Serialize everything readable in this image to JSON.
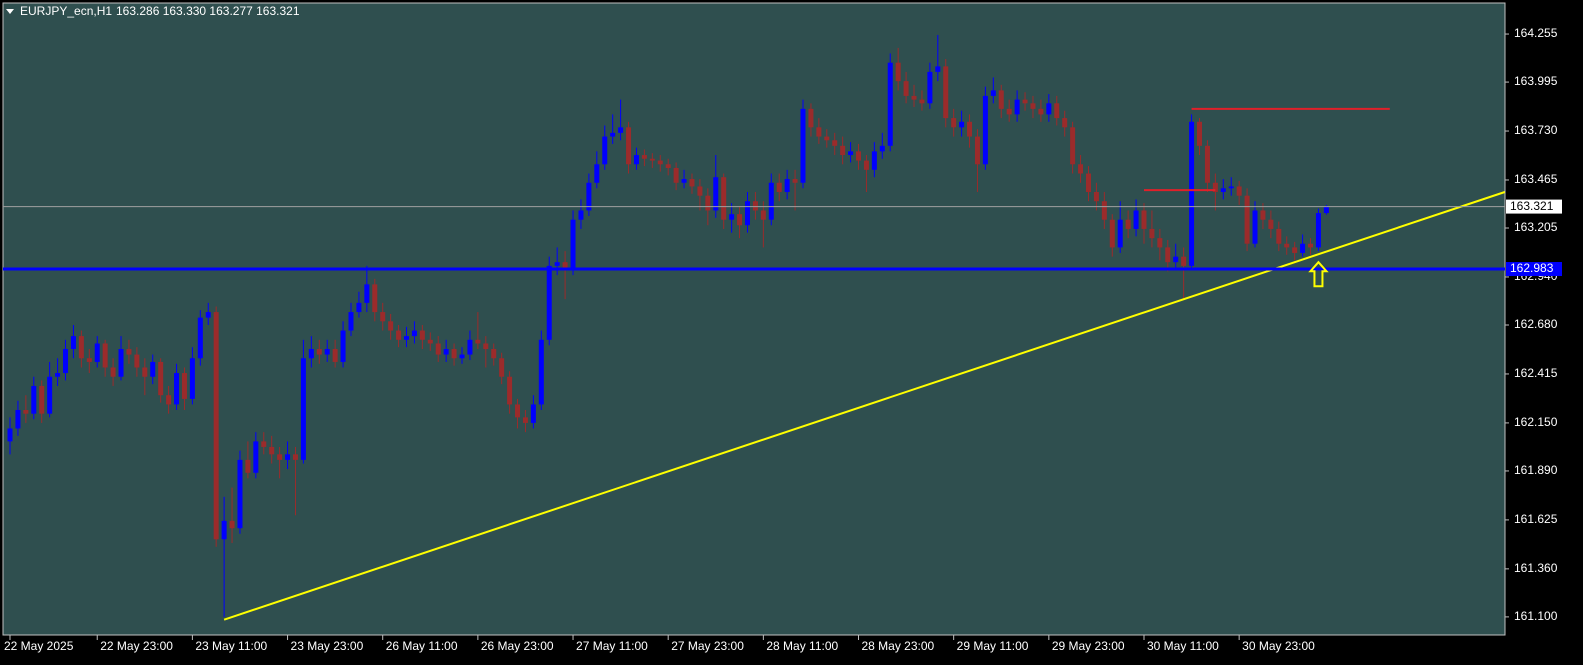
{
  "chart_data": {
    "type": "candlestick",
    "title": "EURJPY_ecn,H1",
    "quote": "163.286 163.330 163.277 163.321",
    "background": "#2f4f4f",
    "up_color": "#0000ff",
    "down_color": "#9b2b2b",
    "grid": false,
    "ylim": [
      161.002,
      164.423
    ],
    "yticks": [
      164.255,
      163.995,
      {
        "value": 163.73,
        "label": "163.730"
      },
      163.465,
      163.205,
      {
        "value": 162.94,
        "label": "162.940"
      },
      {
        "value": 162.68,
        "label": "162.680"
      },
      162.415,
      {
        "value": 162.15,
        "label": "162.150"
      },
      {
        "value": 161.89,
        "label": "161.890"
      },
      161.625,
      {
        "value": 161.36,
        "label": "161.360"
      },
      {
        "value": 161.1,
        "label": "161.100"
      }
    ],
    "categories": [
      "22 May 2025",
      null,
      null,
      null,
      null,
      null,
      null,
      null,
      null,
      null,
      null,
      "22 May 23:00",
      null,
      null,
      null,
      null,
      null,
      null,
      null,
      null,
      null,
      null,
      null,
      "23 May 11:00",
      null,
      null,
      null,
      null,
      null,
      null,
      null,
      null,
      null,
      null,
      null,
      "23 May 23:00",
      null,
      null,
      null,
      null,
      null,
      null,
      null,
      null,
      null,
      null,
      null,
      "26 May 11:00",
      null,
      null,
      null,
      null,
      null,
      null,
      null,
      null,
      null,
      null,
      null,
      "26 May 23:00",
      null,
      null,
      null,
      null,
      null,
      null,
      null,
      null,
      null,
      null,
      null,
      "27 May 11:00",
      null,
      null,
      null,
      null,
      null,
      null,
      null,
      null,
      null,
      null,
      null,
      "27 May 23:00",
      null,
      null,
      null,
      null,
      null,
      null,
      null,
      null,
      null,
      null,
      null,
      "28 May 11:00",
      null,
      null,
      null,
      null,
      null,
      null,
      null,
      null,
      null,
      null,
      null,
      "28 May 23:00",
      null,
      null,
      null,
      null,
      null,
      null,
      null,
      null,
      null,
      null,
      null,
      "29 May 11:00",
      null,
      null,
      null,
      null,
      null,
      null,
      null,
      null,
      null,
      null,
      null,
      "29 May 23:00",
      null,
      null,
      null,
      null,
      null,
      null,
      null,
      null,
      null,
      null,
      null,
      "30 May 11:00",
      null,
      null,
      null,
      null,
      null,
      null,
      null,
      null,
      null,
      null,
      null,
      "30 May 23:00",
      null,
      null,
      null,
      null,
      null,
      null,
      null,
      null,
      null,
      null,
      null
    ],
    "open": [
      162.05,
      162.12,
      162.22,
      162.2,
      162.35,
      162.2,
      162.4,
      162.42,
      162.55,
      162.62,
      162.5,
      162.48,
      162.58,
      162.45,
      162.4,
      162.55,
      162.52,
      162.45,
      162.4,
      162.48,
      162.3,
      162.25,
      162.42,
      162.28,
      162.5,
      162.72,
      162.75,
      161.52,
      161.62,
      161.58,
      161.95,
      161.88,
      162.05,
      162.02,
      161.98,
      161.95,
      161.98,
      161.95,
      162.5,
      162.55,
      162.52,
      162.55,
      162.48,
      162.65,
      162.75,
      162.8,
      162.9,
      162.75,
      162.7,
      162.65,
      162.6,
      162.62,
      162.65,
      162.6,
      162.58,
      162.52,
      162.55,
      162.5,
      162.52,
      162.6,
      162.58,
      162.55,
      162.5,
      162.4,
      162.25,
      162.18,
      162.15,
      162.25,
      162.6,
      163.0,
      163.02,
      162.98,
      163.25,
      163.3,
      163.45,
      163.55,
      163.7,
      163.72,
      163.75,
      163.55,
      163.6,
      163.58,
      163.57,
      163.55,
      163.53,
      163.45,
      163.47,
      163.43,
      163.38,
      163.3,
      163.48,
      163.25,
      163.28,
      163.22,
      163.35,
      163.3,
      163.25,
      163.45,
      163.4,
      163.47,
      163.45,
      163.85,
      163.75,
      163.7,
      163.68,
      163.65,
      163.6,
      163.62,
      163.57,
      163.52,
      163.62,
      163.65,
      164.1,
      164.0,
      163.92,
      163.9,
      163.88,
      164.05,
      164.08,
      163.8,
      163.75,
      163.78,
      163.7,
      163.55,
      163.92,
      163.95,
      163.85,
      163.82,
      163.9,
      163.88,
      163.85,
      163.82,
      163.88,
      163.8,
      163.75,
      163.55,
      163.5,
      163.4,
      163.35,
      163.25,
      163.1,
      163.25,
      163.2,
      163.3,
      163.2,
      163.15,
      163.1,
      163.02,
      163.05,
      163.0,
      163.78,
      163.65,
      163.45,
      163.4,
      163.42,
      163.43,
      163.38,
      163.12,
      163.3,
      163.25,
      163.2,
      163.12,
      163.1,
      163.07,
      163.12,
      163.1,
      163.286
    ],
    "high": [
      162.18,
      162.27,
      162.3,
      162.4,
      162.38,
      162.48,
      162.5,
      162.6,
      162.68,
      162.65,
      162.55,
      162.62,
      162.6,
      162.5,
      162.62,
      162.6,
      162.56,
      162.5,
      162.52,
      162.5,
      162.35,
      162.47,
      162.45,
      162.56,
      162.76,
      162.8,
      162.78,
      161.75,
      161.8,
      162.0,
      162.05,
      162.1,
      162.1,
      162.08,
      162.02,
      162.05,
      162.02,
      162.6,
      162.62,
      162.6,
      162.6,
      162.6,
      162.7,
      162.8,
      162.86,
      163.0,
      162.93,
      162.8,
      162.74,
      162.68,
      162.67,
      162.7,
      162.68,
      162.64,
      162.62,
      162.6,
      162.58,
      162.56,
      162.65,
      162.75,
      162.62,
      162.58,
      162.53,
      162.43,
      162.28,
      162.22,
      162.3,
      162.65,
      163.05,
      163.1,
      163.08,
      163.3,
      163.36,
      163.5,
      163.62,
      163.76,
      163.82,
      163.9,
      163.78,
      163.64,
      163.63,
      163.61,
      163.6,
      163.58,
      163.56,
      163.52,
      163.5,
      163.47,
      163.42,
      163.6,
      163.5,
      163.34,
      163.32,
      163.4,
      163.4,
      163.35,
      163.5,
      163.5,
      163.52,
      163.52,
      163.9,
      163.88,
      163.8,
      163.74,
      163.72,
      163.7,
      163.67,
      163.66,
      163.6,
      163.67,
      163.72,
      164.15,
      164.18,
      164.05,
      163.98,
      163.95,
      164.1,
      164.25,
      164.12,
      163.85,
      163.84,
      163.82,
      163.74,
      163.97,
      164.02,
      163.98,
      163.9,
      163.95,
      163.94,
      163.92,
      163.9,
      163.93,
      163.92,
      163.84,
      163.78,
      163.6,
      163.54,
      163.45,
      163.4,
      163.28,
      163.35,
      163.3,
      163.36,
      163.34,
      163.3,
      163.2,
      163.14,
      163.12,
      163.1,
      163.82,
      163.8,
      163.68,
      163.5,
      163.47,
      163.48,
      163.46,
      163.42,
      163.35,
      163.34,
      163.3,
      163.24,
      163.16,
      163.13,
      163.17,
      163.15,
      163.31,
      163.33
    ],
    "low": [
      161.98,
      162.08,
      162.15,
      162.17,
      162.15,
      162.18,
      162.35,
      162.38,
      162.5,
      162.45,
      162.42,
      162.45,
      162.4,
      162.35,
      162.38,
      162.47,
      162.4,
      162.3,
      162.36,
      162.26,
      162.2,
      162.22,
      162.22,
      162.25,
      162.46,
      162.68,
      161.48,
      161.1,
      161.5,
      161.55,
      161.85,
      161.85,
      161.98,
      161.93,
      161.85,
      161.9,
      161.65,
      161.93,
      162.45,
      162.47,
      162.48,
      162.45,
      162.45,
      162.62,
      162.72,
      162.75,
      162.7,
      162.65,
      162.6,
      162.56,
      162.56,
      162.58,
      162.55,
      162.54,
      162.48,
      162.48,
      162.46,
      162.47,
      162.49,
      162.55,
      162.45,
      162.46,
      162.36,
      162.2,
      162.12,
      162.1,
      162.12,
      162.22,
      162.57,
      162.95,
      162.82,
      162.95,
      163.2,
      163.27,
      163.42,
      163.52,
      163.66,
      163.68,
      163.5,
      163.52,
      163.54,
      163.53,
      163.51,
      163.49,
      163.41,
      163.42,
      163.39,
      163.3,
      163.22,
      163.26,
      163.2,
      163.18,
      163.15,
      163.18,
      163.25,
      163.1,
      163.22,
      163.35,
      163.36,
      163.3,
      163.42,
      163.7,
      163.66,
      163.64,
      163.6,
      163.55,
      163.56,
      163.52,
      163.4,
      163.48,
      163.58,
      163.62,
      163.95,
      163.88,
      163.86,
      163.84,
      163.85,
      164.0,
      163.75,
      163.7,
      163.7,
      163.64,
      163.4,
      163.52,
      163.88,
      163.8,
      163.78,
      163.78,
      163.84,
      163.8,
      163.78,
      163.78,
      163.76,
      163.7,
      163.5,
      163.45,
      163.35,
      163.3,
      163.2,
      163.05,
      163.07,
      163.15,
      163.16,
      163.12,
      163.1,
      163.03,
      162.97,
      162.98,
      162.82,
      162.98,
      163.6,
      163.4,
      163.3,
      163.36,
      163.38,
      163.33,
      163.08,
      163.1,
      163.2,
      163.15,
      163.08,
      163.06,
      163.03,
      163.05,
      163.06,
      163.08,
      163.277
    ],
    "close": [
      162.12,
      162.22,
      162.2,
      162.35,
      162.2,
      162.4,
      162.42,
      162.55,
      162.62,
      162.5,
      162.48,
      162.58,
      162.45,
      162.4,
      162.55,
      162.52,
      162.45,
      162.4,
      162.48,
      162.3,
      162.25,
      162.42,
      162.28,
      162.5,
      162.72,
      162.75,
      161.52,
      161.62,
      161.58,
      161.95,
      161.88,
      162.05,
      162.02,
      161.98,
      161.95,
      161.98,
      161.95,
      162.5,
      162.55,
      162.52,
      162.55,
      162.48,
      162.65,
      162.75,
      162.8,
      162.9,
      162.75,
      162.7,
      162.65,
      162.6,
      162.62,
      162.65,
      162.6,
      162.58,
      162.52,
      162.55,
      162.5,
      162.52,
      162.6,
      162.58,
      162.55,
      162.5,
      162.4,
      162.25,
      162.18,
      162.15,
      162.25,
      162.6,
      163.0,
      163.02,
      162.98,
      163.25,
      163.3,
      163.45,
      163.55,
      163.7,
      163.72,
      163.75,
      163.55,
      163.6,
      163.58,
      163.57,
      163.55,
      163.53,
      163.45,
      163.47,
      163.43,
      163.38,
      163.3,
      163.48,
      163.25,
      163.28,
      163.22,
      163.35,
      163.3,
      163.25,
      163.45,
      163.4,
      163.47,
      163.45,
      163.85,
      163.75,
      163.7,
      163.68,
      163.65,
      163.6,
      163.62,
      163.57,
      163.52,
      163.62,
      163.65,
      164.1,
      164.0,
      163.92,
      163.9,
      163.88,
      164.05,
      164.08,
      163.8,
      163.75,
      163.78,
      163.7,
      163.55,
      163.92,
      163.95,
      163.85,
      163.82,
      163.9,
      163.88,
      163.85,
      163.82,
      163.88,
      163.8,
      163.75,
      163.55,
      163.5,
      163.4,
      163.35,
      163.25,
      163.1,
      163.25,
      163.2,
      163.3,
      163.2,
      163.15,
      163.1,
      163.02,
      163.05,
      163.0,
      163.78,
      163.65,
      163.45,
      163.4,
      163.42,
      163.43,
      163.38,
      163.12,
      163.3,
      163.25,
      163.2,
      163.12,
      163.1,
      163.07,
      163.12,
      163.1,
      163.286,
      163.321
    ],
    "price_line_color": "#a0a0a0",
    "hlines": [
      {
        "value": 162.983,
        "color": "#0000ff"
      }
    ],
    "segments": [
      {
        "x1": 149,
        "x2": 174,
        "y": 163.85,
        "color": "#e0202a"
      },
      {
        "x1": 143,
        "x2": 152,
        "y": 163.41,
        "color": "#e0202a"
      }
    ],
    "trendline": {
      "x1": 27,
      "y1": 161.085,
      "x2": 188.5,
      "y2": 163.4,
      "color": "#ffff00"
    },
    "arrow": {
      "x": 165,
      "y": 163.02,
      "color": "#ffff00"
    }
  }
}
